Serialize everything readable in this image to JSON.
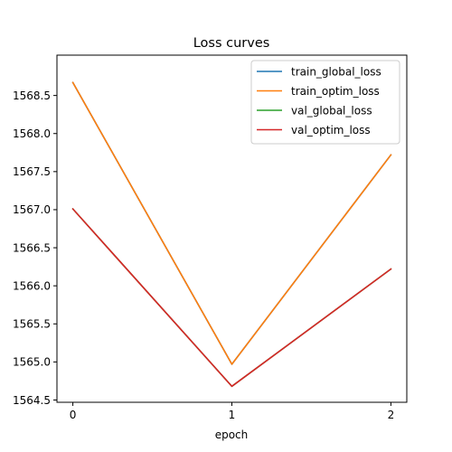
{
  "chart_data": {
    "type": "line",
    "title": "Loss curves",
    "xlabel": "epoch",
    "ylabel": "",
    "x": [
      0,
      1,
      2
    ],
    "xlim": [
      -0.1,
      2.1
    ],
    "ylim": [
      1564.47,
      1569.03
    ],
    "xticks": [
      0,
      1,
      2
    ],
    "xtick_labels": [
      "0",
      "1",
      "2"
    ],
    "yticks": [
      1564.5,
      1565.0,
      1565.5,
      1566.0,
      1566.5,
      1567.0,
      1567.5,
      1568.0,
      1568.5
    ],
    "ytick_labels": [
      "1564.5",
      "1565.0",
      "1565.5",
      "1566.0",
      "1566.5",
      "1567.0",
      "1567.5",
      "1568.0",
      "1568.5"
    ],
    "grid": false,
    "legend_position": "top-right",
    "series": [
      {
        "name": "train_global_loss",
        "color": "#1f77b4",
        "values": [
          1568.67,
          1564.97,
          1567.72
        ]
      },
      {
        "name": "train_optim_loss",
        "color": "#ff7f0e",
        "values": [
          1568.67,
          1564.97,
          1567.72
        ]
      },
      {
        "name": "val_global_loss",
        "color": "#2ca02c",
        "values": [
          1567.01,
          1564.68,
          1566.22
        ]
      },
      {
        "name": "val_optim_loss",
        "color": "#d62728",
        "values": [
          1567.01,
          1564.68,
          1566.22
        ]
      }
    ]
  }
}
